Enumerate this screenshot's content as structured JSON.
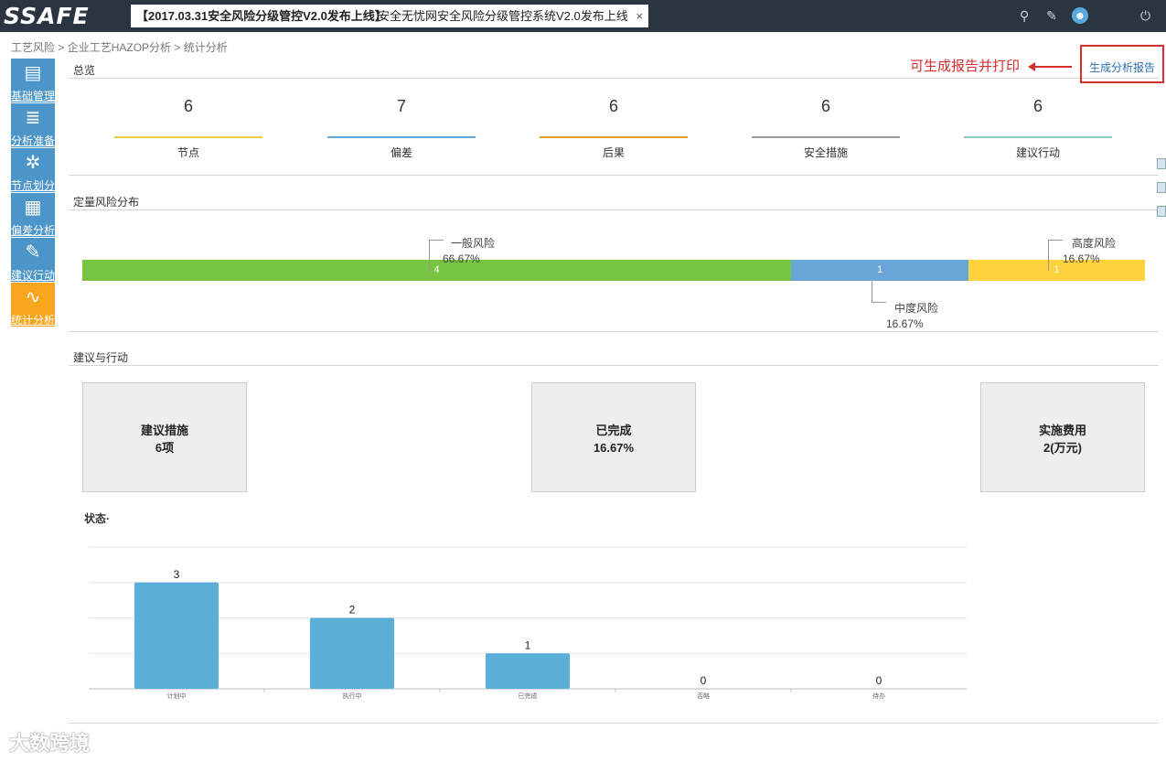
{
  "topbar": {
    "logo": "SSAFE",
    "tab_bold": "【2017.03.31安全风险分级管控V2.0发布上线】",
    "tab_text": "安全无忧网安全风险分级管控系统V2.0发布上线",
    "tab_close": "×",
    "icons": [
      "search-icon",
      "edit-icon",
      "user-icon",
      "power-icon"
    ]
  },
  "breadcrumb": [
    "工艺风险",
    "企业工艺HAZOP分析",
    "统计分析"
  ],
  "breadcrumb_sep": ">",
  "sidebar": {
    "items": [
      {
        "label": "基础管理",
        "icon": "folder-icon",
        "glyph": "▤"
      },
      {
        "label": "分析准备",
        "icon": "notepad-icon",
        "glyph": "≣"
      },
      {
        "label": "节点划分",
        "icon": "nodes-icon",
        "glyph": "✲"
      },
      {
        "label": "偏差分析",
        "icon": "grid-icon",
        "glyph": "▦"
      },
      {
        "label": "建议行动",
        "icon": "edit-icon",
        "glyph": "✎"
      },
      {
        "label": "统计分析",
        "icon": "line-chart-icon",
        "glyph": "∿"
      }
    ],
    "active_index": 5
  },
  "report": {
    "link": "生成分析报告",
    "annotation": "可生成报告并打印"
  },
  "overview": {
    "title": "总览",
    "items": [
      {
        "value": "6",
        "label": "节点",
        "color": "#e8d23a"
      },
      {
        "value": "7",
        "label": "偏差",
        "color": "#5aa8d8"
      },
      {
        "value": "6",
        "label": "后果",
        "color": "#e0a020"
      },
      {
        "value": "6",
        "label": "安全措施",
        "color": "#999999"
      },
      {
        "value": "6",
        "label": "建议行动",
        "color": "#8ccfc0"
      }
    ]
  },
  "risk": {
    "title": "定量风险分布",
    "segments": [
      {
        "name": "一般风险",
        "count": "4",
        "percent": "66.67%",
        "fraction": 0.6667,
        "color": "#77c342"
      },
      {
        "name": "中度风险",
        "count": "1",
        "percent": "16.67%",
        "fraction": 0.1667,
        "color": "#67a6d6"
      },
      {
        "name": "高度风险",
        "count": "1",
        "percent": "16.67%",
        "fraction": 0.1667,
        "color": "#fdd23c"
      }
    ]
  },
  "actions": {
    "title": "建议与行动",
    "boxes": [
      {
        "label": "建议措施",
        "value": "6项"
      },
      {
        "label": "已完成",
        "value": "16.67%"
      },
      {
        "label": "实施费用",
        "value": "2(万元)"
      }
    ]
  },
  "status": {
    "title": "状态·"
  },
  "chart_data": {
    "type": "bar",
    "categories": [
      "计划中",
      "执行中",
      "已完成",
      "否略",
      "待办"
    ],
    "values": [
      3,
      2,
      1,
      0,
      0
    ],
    "ylim": [
      0,
      4
    ],
    "grid": true,
    "color": "#5aaed8"
  },
  "watermark": "大数跨境"
}
